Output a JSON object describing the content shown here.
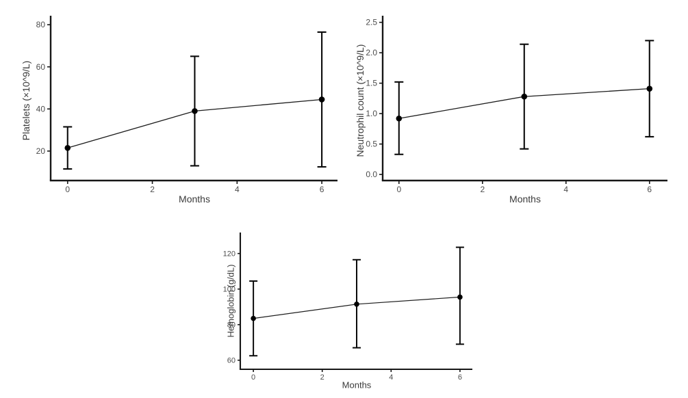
{
  "figure": {
    "background": "#ffffff",
    "x_axis_label": "Months"
  },
  "style": {
    "axis_color": "#161616",
    "errorbar_color": "#0a0a0a",
    "line_color": "#1c1c1c",
    "point_color": "#000000",
    "tick_label_color": "#4d4d4d",
    "axis_title_color": "#3a3a3a"
  },
  "chart_data": [
    {
      "id": "platelets",
      "type": "line",
      "title": "",
      "xlabel": "Months",
      "ylabel": "Platelets (×10^9/L)",
      "x": [
        0,
        3,
        6
      ],
      "series": [
        {
          "name": "mean",
          "values": [
            21.5,
            39,
            44.5
          ]
        }
      ],
      "error_low": [
        11.5,
        13,
        12.5
      ],
      "error_high": [
        31.5,
        65,
        76.5
      ],
      "xticks": [
        "0",
        "2",
        "4",
        "6"
      ],
      "xtick_values": [
        0,
        2,
        4,
        6
      ],
      "yticks": [
        "20",
        "40",
        "60",
        "80"
      ],
      "ytick_values": [
        20,
        40,
        60,
        80
      ],
      "xlim": [
        -0.4,
        6.37
      ],
      "ylim": [
        6,
        82
      ],
      "grid": false,
      "legend": "none"
    },
    {
      "id": "neutrophil",
      "type": "line",
      "title": "",
      "xlabel": "Months",
      "ylabel": "Neutrophil count (×10^9/L)",
      "x": [
        0,
        3,
        6
      ],
      "series": [
        {
          "name": "mean",
          "values": [
            0.92,
            1.28,
            1.41
          ]
        }
      ],
      "error_low": [
        0.33,
        0.42,
        0.62
      ],
      "error_high": [
        1.52,
        2.14,
        2.2
      ],
      "xticks": [
        "0",
        "2",
        "4",
        "6"
      ],
      "xtick_values": [
        0,
        2,
        4,
        6
      ],
      "yticks": [
        "0.0",
        "0.5",
        "1.0",
        "1.5",
        "2.0",
        "2.5"
      ],
      "ytick_values": [
        0,
        0.5,
        1,
        1.5,
        2,
        2.5
      ],
      "xlim": [
        -0.39,
        6.43
      ],
      "ylim": [
        -0.1,
        2.53
      ],
      "grid": false,
      "legend": "none"
    },
    {
      "id": "hemoglobin",
      "type": "line",
      "title": "",
      "xlabel": "Months",
      "ylabel": "Hemoglobin (g/dL)",
      "x": [
        0,
        3,
        6
      ],
      "series": [
        {
          "name": "mean",
          "values": [
            83.5,
            91.5,
            95.5
          ]
        }
      ],
      "error_low": [
        62.5,
        67,
        69
      ],
      "error_high": [
        104.5,
        116.5,
        123.5
      ],
      "xticks": [
        "0",
        "2",
        "4",
        "6"
      ],
      "xtick_values": [
        0,
        2,
        4,
        6
      ],
      "yticks": [
        "60",
        "80",
        "100",
        "120"
      ],
      "ytick_values": [
        60,
        80,
        100,
        120
      ],
      "xlim": [
        -0.38,
        6.36
      ],
      "ylim": [
        54.9,
        131.8
      ],
      "grid": false,
      "legend": "none"
    }
  ]
}
